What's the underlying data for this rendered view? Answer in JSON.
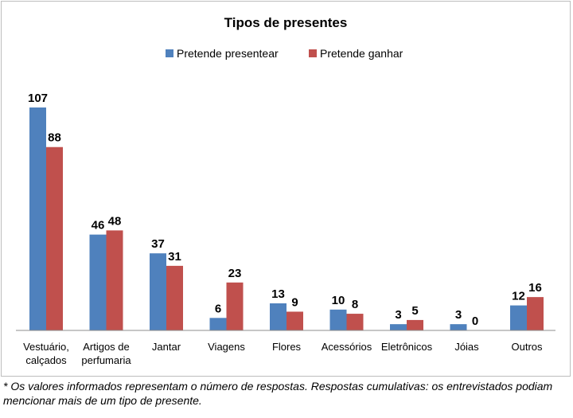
{
  "chart_data": {
    "type": "bar",
    "title": "Tipos de presentes",
    "categories": [
      [
        "Vestuário,",
        "calçados"
      ],
      [
        "Artigos de",
        "perfumaria"
      ],
      [
        "Jantar"
      ],
      [
        "Viagens"
      ],
      [
        "Flores"
      ],
      [
        "Acessórios"
      ],
      [
        "Eletrônicos"
      ],
      [
        "Jóias"
      ],
      [
        "Outros"
      ]
    ],
    "series": [
      {
        "name": "Pretende presentear",
        "color": "#4f81bd",
        "values": [
          107,
          46,
          37,
          6,
          13,
          10,
          3,
          3,
          12
        ]
      },
      {
        "name": "Pretende ganhar",
        "color": "#c0504d",
        "values": [
          88,
          48,
          31,
          23,
          9,
          8,
          5,
          0,
          16
        ]
      }
    ],
    "ylim": [
      0,
      107
    ],
    "grid": false,
    "legend_position": "top-center",
    "data_labels": true
  },
  "footnote": "* Os valores informados representam o número de respostas. Respostas cumulativas: os entrevistados podiam mencionar mais de um tipo de presente."
}
